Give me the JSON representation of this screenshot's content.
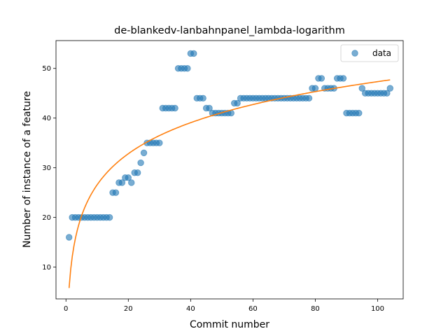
{
  "chart_data": {
    "type": "scatter",
    "title": "de-blankedv-lanbahnpanel_lambda-logarithm",
    "xlabel": "Commit number",
    "ylabel": "Number of instance of a feature",
    "xlim": [
      -3.2,
      108.2
    ],
    "ylim": [
      3.6,
      55.6
    ],
    "xticks": [
      0,
      20,
      40,
      60,
      80,
      100
    ],
    "yticks": [
      10,
      20,
      30,
      40,
      50
    ],
    "grid": false,
    "legend": {
      "position": "upper-right",
      "entries": [
        "data"
      ]
    },
    "colors": {
      "data": "#1f77b4",
      "fit": "#ff7f0e"
    },
    "series": [
      {
        "name": "data",
        "kind": "scatter",
        "x": [
          1,
          2,
          3,
          4,
          5,
          6,
          7,
          8,
          9,
          10,
          11,
          12,
          13,
          14,
          15,
          16,
          17,
          18,
          19,
          20,
          21,
          22,
          23,
          24,
          25,
          26,
          27,
          28,
          29,
          30,
          31,
          32,
          33,
          34,
          35,
          36,
          37,
          38,
          39,
          40,
          41,
          42,
          43,
          44,
          45,
          46,
          47,
          48,
          49,
          50,
          51,
          52,
          53,
          54,
          55,
          56,
          57,
          58,
          59,
          60,
          61,
          62,
          63,
          64,
          65,
          66,
          67,
          68,
          69,
          70,
          71,
          72,
          73,
          74,
          75,
          76,
          77,
          78,
          79,
          80,
          81,
          82,
          83,
          84,
          85,
          86,
          87,
          88,
          89,
          90,
          91,
          92,
          93,
          94,
          95,
          96,
          97,
          98,
          99,
          100,
          101,
          102,
          103,
          104
        ],
        "y": [
          16,
          20,
          20,
          20,
          20,
          20,
          20,
          20,
          20,
          20,
          20,
          20,
          20,
          20,
          25,
          25,
          27,
          27,
          28,
          28,
          27,
          29,
          29,
          31,
          33,
          35,
          35,
          35,
          35,
          35,
          42,
          42,
          42,
          42,
          42,
          50,
          50,
          50,
          50,
          53,
          53,
          44,
          44,
          44,
          42,
          42,
          41,
          41,
          41,
          41,
          41,
          41,
          41,
          43,
          43,
          44,
          44,
          44,
          44,
          44,
          44,
          44,
          44,
          44,
          44,
          44,
          44,
          44,
          44,
          44,
          44,
          44,
          44,
          44,
          44,
          44,
          44,
          44,
          46,
          46,
          48,
          48,
          46,
          46,
          46,
          46,
          48,
          48,
          48,
          41,
          41,
          41,
          41,
          41,
          46,
          45,
          45,
          45,
          45,
          45,
          45,
          45,
          45,
          46
        ]
      },
      {
        "kind": "line",
        "fit": "logarithmic",
        "coefficients": {
          "a": 5.8,
          "b": 9.02
        },
        "x_range": [
          1,
          104
        ]
      }
    ]
  }
}
